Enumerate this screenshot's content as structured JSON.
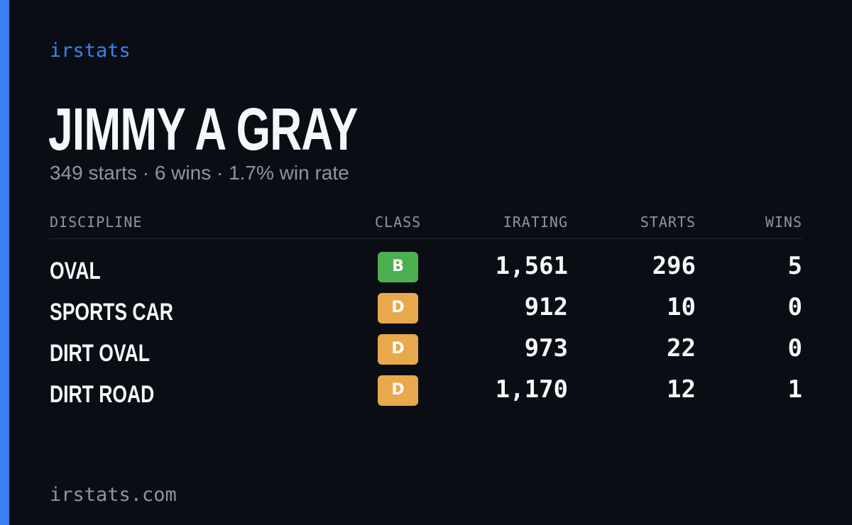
{
  "brand": "irstats",
  "driver": {
    "name": "JIMMY A GRAY",
    "summary": "349 starts · 6 wins · 1.7% win rate"
  },
  "table": {
    "headers": {
      "discipline": "DISCIPLINE",
      "class": "CLASS",
      "irating": "IRATING",
      "starts": "STARTS",
      "wins": "WINS"
    },
    "rows": [
      {
        "discipline": "OVAL",
        "class": "B",
        "class_color": "#4caf50",
        "irating": "1,561",
        "starts": "296",
        "wins": "5"
      },
      {
        "discipline": "SPORTS CAR",
        "class": "D",
        "class_color": "#e8a84c",
        "irating": "912",
        "starts": "10",
        "wins": "0"
      },
      {
        "discipline": "DIRT OVAL",
        "class": "D",
        "class_color": "#e8a84c",
        "irating": "973",
        "starts": "22",
        "wins": "0"
      },
      {
        "discipline": "DIRT ROAD",
        "class": "D",
        "class_color": "#e8a84c",
        "irating": "1,170",
        "starts": "12",
        "wins": "1"
      }
    ]
  },
  "footer": "irstats.com",
  "colors": {
    "accent": "#3b82f6",
    "background": "#0a0d14",
    "muted_text": "#8c95a6",
    "primary_text": "#f5f7fb"
  }
}
